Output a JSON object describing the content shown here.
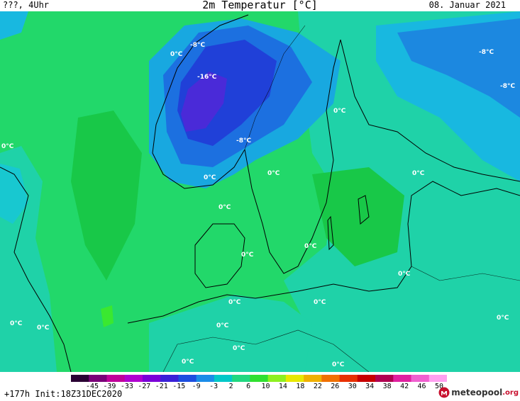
{
  "header": {
    "run_info": "???, 4Uhr",
    "title": "2m Temperatur [°C]",
    "date": "08. Januar 2021"
  },
  "legend": {
    "ticks": [
      "-45",
      "-39",
      "-33",
      "-27",
      "-21",
      "-15",
      "-9",
      "-3",
      "2",
      "6",
      "10",
      "14",
      "18",
      "22",
      "26",
      "30",
      "34",
      "38",
      "42",
      "46",
      "50"
    ],
    "colors": [
      "#2a0033",
      "#7a0078",
      "#c0009a",
      "#b000d0",
      "#7a00d8",
      "#3a20d8",
      "#1c4ee0",
      "#1a8ce8",
      "#00c8c8",
      "#20d880",
      "#30e030",
      "#8ef020",
      "#e8e800",
      "#f0b000",
      "#f07000",
      "#e83000",
      "#c80000",
      "#b00050",
      "#e020a0",
      "#f060d0",
      "#ffa0f0"
    ]
  },
  "footer": {
    "forecast_info": "+177h  Init:18Z31DEC2020",
    "logo_name": "meteopool",
    "logo_suffix": ".org",
    "logo_icon": "meteopool-logo-icon"
  },
  "map_labels": [
    "-8°C",
    "-16°C",
    "-8°C",
    "-8°C",
    "-8°C",
    "0°C",
    "0°C",
    "0°C",
    "0°C",
    "0°C",
    "0°C",
    "0°C",
    "0°C",
    "0°C",
    "0°C",
    "0°C",
    "0°C",
    "0°C",
    "0°C",
    "0°C",
    "0°C",
    "0°C",
    "0°C"
  ]
}
